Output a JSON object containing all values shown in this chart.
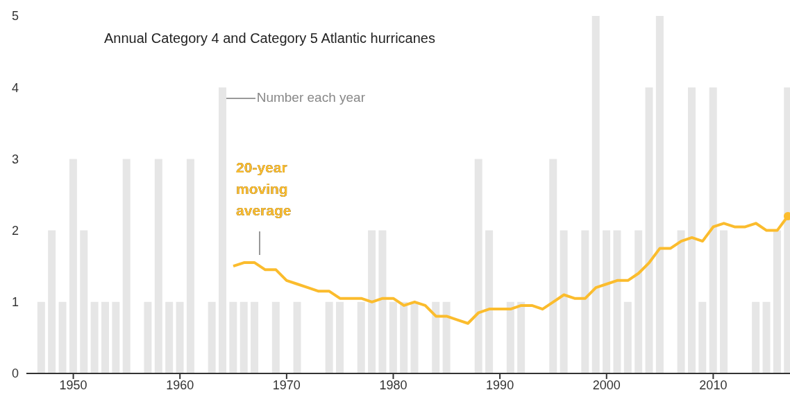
{
  "chart_data": {
    "type": "bar",
    "title": "Annual Category 4 and Category 5 Atlantic hurricanes",
    "x": [
      1947,
      1948,
      1949,
      1950,
      1951,
      1952,
      1953,
      1954,
      1955,
      1956,
      1957,
      1958,
      1959,
      1960,
      1961,
      1962,
      1963,
      1964,
      1965,
      1966,
      1967,
      1968,
      1969,
      1970,
      1971,
      1972,
      1973,
      1974,
      1975,
      1976,
      1977,
      1978,
      1979,
      1980,
      1981,
      1982,
      1983,
      1984,
      1985,
      1986,
      1987,
      1988,
      1989,
      1990,
      1991,
      1992,
      1993,
      1994,
      1995,
      1996,
      1997,
      1998,
      1999,
      2000,
      2001,
      2002,
      2003,
      2004,
      2005,
      2006,
      2007,
      2008,
      2009,
      2010,
      2011,
      2012,
      2013,
      2014,
      2015,
      2016,
      2017
    ],
    "series": [
      {
        "name": "Number each year",
        "color": "#e6e6e6",
        "values": [
          1,
          2,
          1,
          3,
          2,
          1,
          1,
          1,
          3,
          0,
          1,
          3,
          1,
          1,
          3,
          0,
          1,
          4,
          1,
          1,
          1,
          0,
          1,
          0,
          1,
          0,
          0,
          1,
          1,
          0,
          1,
          2,
          2,
          1,
          1,
          1,
          0,
          1,
          1,
          0,
          0,
          3,
          2,
          0,
          1,
          1,
          0,
          0,
          3,
          2,
          0,
          2,
          5,
          2,
          2,
          1,
          2,
          4,
          5,
          0,
          2,
          4,
          1,
          4,
          2,
          0,
          0,
          1,
          1,
          2,
          4
        ]
      },
      {
        "name": "20-year moving average",
        "type": "line",
        "color": "#fbbc2d",
        "values": [
          null,
          null,
          null,
          null,
          null,
          null,
          null,
          null,
          null,
          null,
          null,
          null,
          null,
          null,
          null,
          null,
          null,
          null,
          1.5,
          1.55,
          1.55,
          1.45,
          1.45,
          1.3,
          1.25,
          1.2,
          1.15,
          1.15,
          1.05,
          1.05,
          1.05,
          1.0,
          1.05,
          1.05,
          0.95,
          1.0,
          0.95,
          0.8,
          0.8,
          0.75,
          0.7,
          0.85,
          0.9,
          0.9,
          0.9,
          0.95,
          0.95,
          0.9,
          1.0,
          1.1,
          1.05,
          1.05,
          1.2,
          1.25,
          1.3,
          1.3,
          1.4,
          1.55,
          1.75,
          1.75,
          1.85,
          1.9,
          1.85,
          2.05,
          2.1,
          2.05,
          2.05,
          2.1,
          2.0,
          2.0,
          2.2
        ]
      }
    ],
    "xlim": [
      1945.6,
      2017.2
    ],
    "xticks": [
      1950,
      1960,
      1970,
      1980,
      1990,
      2000,
      2010
    ],
    "ylim": [
      0,
      5
    ],
    "yticks": [
      0,
      1,
      2,
      3,
      4,
      5
    ],
    "grid": false,
    "legend": false
  }
}
